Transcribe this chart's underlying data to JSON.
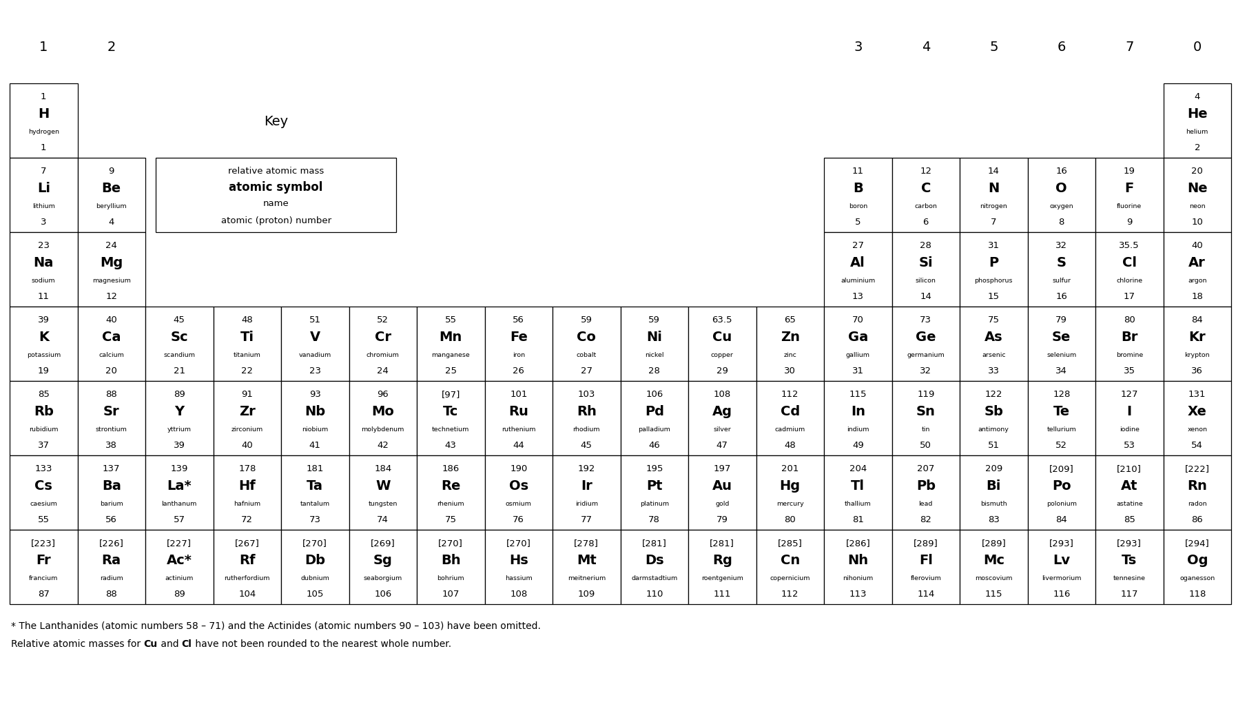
{
  "background_color": "#ffffff",
  "top_labels": [
    "1",
    "2",
    "",
    "",
    "",
    "",
    "",
    "",
    "",
    "",
    "",
    "",
    "3",
    "4",
    "5",
    "6",
    "7",
    "0"
  ],
  "footnote1": "* The Lanthanides (atomic numbers 58 – 71) and the Actinides (atomic numbers 90 – 103) have been omitted.",
  "footnote2_parts": [
    [
      "Relative atomic masses for ",
      false
    ],
    [
      "Cu",
      true
    ],
    [
      " and ",
      false
    ],
    [
      "Cl",
      true
    ],
    [
      " have not been rounded to the nearest whole number.",
      false
    ]
  ],
  "elements": [
    {
      "mass": "1",
      "symbol": "H",
      "name": "hydrogen",
      "number": "1",
      "row": 1,
      "col": 1
    },
    {
      "mass": "4",
      "symbol": "He",
      "name": "helium",
      "number": "2",
      "row": 1,
      "col": 18
    },
    {
      "mass": "7",
      "symbol": "Li",
      "name": "lithium",
      "number": "3",
      "row": 2,
      "col": 1
    },
    {
      "mass": "9",
      "symbol": "Be",
      "name": "beryllium",
      "number": "4",
      "row": 2,
      "col": 2
    },
    {
      "mass": "11",
      "symbol": "B",
      "name": "boron",
      "number": "5",
      "row": 2,
      "col": 13
    },
    {
      "mass": "12",
      "symbol": "C",
      "name": "carbon",
      "number": "6",
      "row": 2,
      "col": 14
    },
    {
      "mass": "14",
      "symbol": "N",
      "name": "nitrogen",
      "number": "7",
      "row": 2,
      "col": 15
    },
    {
      "mass": "16",
      "symbol": "O",
      "name": "oxygen",
      "number": "8",
      "row": 2,
      "col": 16
    },
    {
      "mass": "19",
      "symbol": "F",
      "name": "fluorine",
      "number": "9",
      "row": 2,
      "col": 17
    },
    {
      "mass": "20",
      "symbol": "Ne",
      "name": "neon",
      "number": "10",
      "row": 2,
      "col": 18
    },
    {
      "mass": "23",
      "symbol": "Na",
      "name": "sodium",
      "number": "11",
      "row": 3,
      "col": 1
    },
    {
      "mass": "24",
      "symbol": "Mg",
      "name": "magnesium",
      "number": "12",
      "row": 3,
      "col": 2
    },
    {
      "mass": "27",
      "symbol": "Al",
      "name": "aluminium",
      "number": "13",
      "row": 3,
      "col": 13
    },
    {
      "mass": "28",
      "symbol": "Si",
      "name": "silicon",
      "number": "14",
      "row": 3,
      "col": 14
    },
    {
      "mass": "31",
      "symbol": "P",
      "name": "phosphorus",
      "number": "15",
      "row": 3,
      "col": 15
    },
    {
      "mass": "32",
      "symbol": "S",
      "name": "sulfur",
      "number": "16",
      "row": 3,
      "col": 16
    },
    {
      "mass": "35.5",
      "symbol": "Cl",
      "name": "chlorine",
      "number": "17",
      "row": 3,
      "col": 17
    },
    {
      "mass": "40",
      "symbol": "Ar",
      "name": "argon",
      "number": "18",
      "row": 3,
      "col": 18
    },
    {
      "mass": "39",
      "symbol": "K",
      "name": "potassium",
      "number": "19",
      "row": 4,
      "col": 1
    },
    {
      "mass": "40",
      "symbol": "Ca",
      "name": "calcium",
      "number": "20",
      "row": 4,
      "col": 2
    },
    {
      "mass": "45",
      "symbol": "Sc",
      "name": "scandium",
      "number": "21",
      "row": 4,
      "col": 3
    },
    {
      "mass": "48",
      "symbol": "Ti",
      "name": "titanium",
      "number": "22",
      "row": 4,
      "col": 4
    },
    {
      "mass": "51",
      "symbol": "V",
      "name": "vanadium",
      "number": "23",
      "row": 4,
      "col": 5
    },
    {
      "mass": "52",
      "symbol": "Cr",
      "name": "chromium",
      "number": "24",
      "row": 4,
      "col": 6
    },
    {
      "mass": "55",
      "symbol": "Mn",
      "name": "manganese",
      "number": "25",
      "row": 4,
      "col": 7
    },
    {
      "mass": "56",
      "symbol": "Fe",
      "name": "iron",
      "number": "26",
      "row": 4,
      "col": 8
    },
    {
      "mass": "59",
      "symbol": "Co",
      "name": "cobalt",
      "number": "27",
      "row": 4,
      "col": 9
    },
    {
      "mass": "59",
      "symbol": "Ni",
      "name": "nickel",
      "number": "28",
      "row": 4,
      "col": 10
    },
    {
      "mass": "63.5",
      "symbol": "Cu",
      "name": "copper",
      "number": "29",
      "row": 4,
      "col": 11
    },
    {
      "mass": "65",
      "symbol": "Zn",
      "name": "zinc",
      "number": "30",
      "row": 4,
      "col": 12
    },
    {
      "mass": "70",
      "symbol": "Ga",
      "name": "gallium",
      "number": "31",
      "row": 4,
      "col": 13
    },
    {
      "mass": "73",
      "symbol": "Ge",
      "name": "germanium",
      "number": "32",
      "row": 4,
      "col": 14
    },
    {
      "mass": "75",
      "symbol": "As",
      "name": "arsenic",
      "number": "33",
      "row": 4,
      "col": 15
    },
    {
      "mass": "79",
      "symbol": "Se",
      "name": "selenium",
      "number": "34",
      "row": 4,
      "col": 16
    },
    {
      "mass": "80",
      "symbol": "Br",
      "name": "bromine",
      "number": "35",
      "row": 4,
      "col": 17
    },
    {
      "mass": "84",
      "symbol": "Kr",
      "name": "krypton",
      "number": "36",
      "row": 4,
      "col": 18
    },
    {
      "mass": "85",
      "symbol": "Rb",
      "name": "rubidium",
      "number": "37",
      "row": 5,
      "col": 1
    },
    {
      "mass": "88",
      "symbol": "Sr",
      "name": "strontium",
      "number": "38",
      "row": 5,
      "col": 2
    },
    {
      "mass": "89",
      "symbol": "Y",
      "name": "yttrium",
      "number": "39",
      "row": 5,
      "col": 3
    },
    {
      "mass": "91",
      "symbol": "Zr",
      "name": "zirconium",
      "number": "40",
      "row": 5,
      "col": 4
    },
    {
      "mass": "93",
      "symbol": "Nb",
      "name": "niobium",
      "number": "41",
      "row": 5,
      "col": 5
    },
    {
      "mass": "96",
      "symbol": "Mo",
      "name": "molybdenum",
      "number": "42",
      "row": 5,
      "col": 6
    },
    {
      "mass": "[97]",
      "symbol": "Tc",
      "name": "technetium",
      "number": "43",
      "row": 5,
      "col": 7
    },
    {
      "mass": "101",
      "symbol": "Ru",
      "name": "ruthenium",
      "number": "44",
      "row": 5,
      "col": 8
    },
    {
      "mass": "103",
      "symbol": "Rh",
      "name": "rhodium",
      "number": "45",
      "row": 5,
      "col": 9
    },
    {
      "mass": "106",
      "symbol": "Pd",
      "name": "palladium",
      "number": "46",
      "row": 5,
      "col": 10
    },
    {
      "mass": "108",
      "symbol": "Ag",
      "name": "silver",
      "number": "47",
      "row": 5,
      "col": 11
    },
    {
      "mass": "112",
      "symbol": "Cd",
      "name": "cadmium",
      "number": "48",
      "row": 5,
      "col": 12
    },
    {
      "mass": "115",
      "symbol": "In",
      "name": "indium",
      "number": "49",
      "row": 5,
      "col": 13
    },
    {
      "mass": "119",
      "symbol": "Sn",
      "name": "tin",
      "number": "50",
      "row": 5,
      "col": 14
    },
    {
      "mass": "122",
      "symbol": "Sb",
      "name": "antimony",
      "number": "51",
      "row": 5,
      "col": 15
    },
    {
      "mass": "128",
      "symbol": "Te",
      "name": "tellurium",
      "number": "52",
      "row": 5,
      "col": 16
    },
    {
      "mass": "127",
      "symbol": "I",
      "name": "iodine",
      "number": "53",
      "row": 5,
      "col": 17
    },
    {
      "mass": "131",
      "symbol": "Xe",
      "name": "xenon",
      "number": "54",
      "row": 5,
      "col": 18
    },
    {
      "mass": "133",
      "symbol": "Cs",
      "name": "caesium",
      "number": "55",
      "row": 6,
      "col": 1
    },
    {
      "mass": "137",
      "symbol": "Ba",
      "name": "barium",
      "number": "56",
      "row": 6,
      "col": 2
    },
    {
      "mass": "139",
      "symbol": "La*",
      "name": "lanthanum",
      "number": "57",
      "row": 6,
      "col": 3
    },
    {
      "mass": "178",
      "symbol": "Hf",
      "name": "hafnium",
      "number": "72",
      "row": 6,
      "col": 4
    },
    {
      "mass": "181",
      "symbol": "Ta",
      "name": "tantalum",
      "number": "73",
      "row": 6,
      "col": 5
    },
    {
      "mass": "184",
      "symbol": "W",
      "name": "tungsten",
      "number": "74",
      "row": 6,
      "col": 6
    },
    {
      "mass": "186",
      "symbol": "Re",
      "name": "rhenium",
      "number": "75",
      "row": 6,
      "col": 7
    },
    {
      "mass": "190",
      "symbol": "Os",
      "name": "osmium",
      "number": "76",
      "row": 6,
      "col": 8
    },
    {
      "mass": "192",
      "symbol": "Ir",
      "name": "iridium",
      "number": "77",
      "row": 6,
      "col": 9
    },
    {
      "mass": "195",
      "symbol": "Pt",
      "name": "platinum",
      "number": "78",
      "row": 6,
      "col": 10
    },
    {
      "mass": "197",
      "symbol": "Au",
      "name": "gold",
      "number": "79",
      "row": 6,
      "col": 11
    },
    {
      "mass": "201",
      "symbol": "Hg",
      "name": "mercury",
      "number": "80",
      "row": 6,
      "col": 12
    },
    {
      "mass": "204",
      "symbol": "Tl",
      "name": "thallium",
      "number": "81",
      "row": 6,
      "col": 13
    },
    {
      "mass": "207",
      "symbol": "Pb",
      "name": "lead",
      "number": "82",
      "row": 6,
      "col": 14
    },
    {
      "mass": "209",
      "symbol": "Bi",
      "name": "bismuth",
      "number": "83",
      "row": 6,
      "col": 15
    },
    {
      "mass": "[209]",
      "symbol": "Po",
      "name": "polonium",
      "number": "84",
      "row": 6,
      "col": 16
    },
    {
      "mass": "[210]",
      "symbol": "At",
      "name": "astatine",
      "number": "85",
      "row": 6,
      "col": 17
    },
    {
      "mass": "[222]",
      "symbol": "Rn",
      "name": "radon",
      "number": "86",
      "row": 6,
      "col": 18
    },
    {
      "mass": "[223]",
      "symbol": "Fr",
      "name": "francium",
      "number": "87",
      "row": 7,
      "col": 1
    },
    {
      "mass": "[226]",
      "symbol": "Ra",
      "name": "radium",
      "number": "88",
      "row": 7,
      "col": 2
    },
    {
      "mass": "[227]",
      "symbol": "Ac*",
      "name": "actinium",
      "number": "89",
      "row": 7,
      "col": 3
    },
    {
      "mass": "[267]",
      "symbol": "Rf",
      "name": "rutherfordium",
      "number": "104",
      "row": 7,
      "col": 4
    },
    {
      "mass": "[270]",
      "symbol": "Db",
      "name": "dubnium",
      "number": "105",
      "row": 7,
      "col": 5
    },
    {
      "mass": "[269]",
      "symbol": "Sg",
      "name": "seaborgium",
      "number": "106",
      "row": 7,
      "col": 6
    },
    {
      "mass": "[270]",
      "symbol": "Bh",
      "name": "bohrium",
      "number": "107",
      "row": 7,
      "col": 7
    },
    {
      "mass": "[270]",
      "symbol": "Hs",
      "name": "hassium",
      "number": "108",
      "row": 7,
      "col": 8
    },
    {
      "mass": "[278]",
      "symbol": "Mt",
      "name": "meitnerium",
      "number": "109",
      "row": 7,
      "col": 9
    },
    {
      "mass": "[281]",
      "symbol": "Ds",
      "name": "darmstadtium",
      "number": "110",
      "row": 7,
      "col": 10
    },
    {
      "mass": "[281]",
      "symbol": "Rg",
      "name": "roentgenium",
      "number": "111",
      "row": 7,
      "col": 11
    },
    {
      "mass": "[285]",
      "symbol": "Cn",
      "name": "copernicium",
      "number": "112",
      "row": 7,
      "col": 12
    },
    {
      "mass": "[286]",
      "symbol": "Nh",
      "name": "nihonium",
      "number": "113",
      "row": 7,
      "col": 13
    },
    {
      "mass": "[289]",
      "symbol": "Fl",
      "name": "flerovium",
      "number": "114",
      "row": 7,
      "col": 14
    },
    {
      "mass": "[289]",
      "symbol": "Mc",
      "name": "moscovium",
      "number": "115",
      "row": 7,
      "col": 15
    },
    {
      "mass": "[293]",
      "symbol": "Lv",
      "name": "livermorium",
      "number": "116",
      "row": 7,
      "col": 16
    },
    {
      "mass": "[293]",
      "symbol": "Ts",
      "name": "tennesine",
      "number": "117",
      "row": 7,
      "col": 17
    },
    {
      "mass": "[294]",
      "symbol": "Og",
      "name": "oganesson",
      "number": "118",
      "row": 7,
      "col": 18
    }
  ]
}
